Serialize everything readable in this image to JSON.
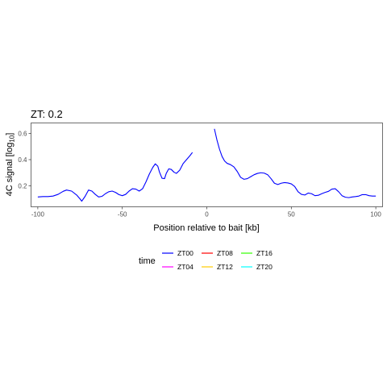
{
  "chart_data": {
    "type": "line",
    "title": "ZT: 0.2",
    "xlabel": "Position relative to bait [kb]",
    "ylabel_main": "4C signal [log",
    "ylabel_sub": "10",
    "ylabel_end": "]",
    "xlim": [
      -104,
      104
    ],
    "ylim": [
      0.04,
      0.68
    ],
    "x_ticks": [
      -100,
      -50,
      0,
      50,
      100
    ],
    "x_tick_labels": [
      "-100",
      "-50",
      "0",
      "50",
      "100"
    ],
    "y_ticks": [
      0.2,
      0.4,
      0.6
    ],
    "y_tick_labels": [
      "0.2",
      "0.4",
      "0.6"
    ],
    "grid": false,
    "legend_title": "time",
    "legend_position": "bottom",
    "legend": [
      {
        "label": "ZT00",
        "color": "#0000ff"
      },
      {
        "label": "ZT04",
        "color": "#ff00ff"
      },
      {
        "label": "ZT08",
        "color": "#ff0000"
      },
      {
        "label": "ZT12",
        "color": "#ffcc00"
      },
      {
        "label": "ZT16",
        "color": "#33ff00"
      },
      {
        "label": "ZT20",
        "color": "#00ffff"
      }
    ],
    "series": [
      {
        "name": "ZT00",
        "color": "#0000ff",
        "segments": [
          [
            [
              -100,
              0.115
            ],
            [
              -97,
              0.118
            ],
            [
              -94,
              0.118
            ],
            [
              -91,
              0.122
            ],
            [
              -88,
              0.135
            ],
            [
              -85,
              0.158
            ],
            [
              -83,
              0.168
            ],
            [
              -80,
              0.16
            ],
            [
              -77,
              0.13
            ],
            [
              -75,
              0.1
            ],
            [
              -74,
              0.083
            ],
            [
              -72,
              0.12
            ],
            [
              -70,
              0.168
            ],
            [
              -68,
              0.16
            ],
            [
              -66,
              0.135
            ],
            [
              -64,
              0.115
            ],
            [
              -62,
              0.12
            ],
            [
              -60,
              0.14
            ],
            [
              -58,
              0.155
            ],
            [
              -56,
              0.16
            ],
            [
              -54,
              0.15
            ],
            [
              -52,
              0.133
            ],
            [
              -50,
              0.125
            ],
            [
              -48,
              0.135
            ],
            [
              -46,
              0.16
            ],
            [
              -44,
              0.178
            ],
            [
              -42,
              0.175
            ],
            [
              -40,
              0.16
            ],
            [
              -38,
              0.178
            ],
            [
              -36,
              0.23
            ],
            [
              -34,
              0.29
            ],
            [
              -32,
              0.34
            ],
            [
              -30.5,
              0.368
            ],
            [
              -29,
              0.35
            ],
            [
              -28,
              0.305
            ],
            [
              -26.5,
              0.258
            ],
            [
              -25,
              0.255
            ],
            [
              -24,
              0.295
            ],
            [
              -22.5,
              0.33
            ],
            [
              -21,
              0.325
            ],
            [
              -19.5,
              0.305
            ],
            [
              -18,
              0.295
            ],
            [
              -16,
              0.32
            ],
            [
              -14,
              0.37
            ],
            [
              -12,
              0.4
            ],
            [
              -10,
              0.43
            ],
            [
              -8.5,
              0.455
            ]
          ],
          [
            [
              4.5,
              0.635
            ],
            [
              6,
              0.55
            ],
            [
              7.5,
              0.48
            ],
            [
              9,
              0.425
            ],
            [
              10.5,
              0.39
            ],
            [
              12,
              0.372
            ],
            [
              14,
              0.362
            ],
            [
              16,
              0.345
            ],
            [
              18,
              0.31
            ],
            [
              20,
              0.265
            ],
            [
              22,
              0.25
            ],
            [
              24,
              0.255
            ],
            [
              26,
              0.27
            ],
            [
              28,
              0.285
            ],
            [
              30,
              0.295
            ],
            [
              32,
              0.3
            ],
            [
              34,
              0.297
            ],
            [
              36,
              0.285
            ],
            [
              38,
              0.255
            ],
            [
              40,
              0.22
            ],
            [
              42,
              0.21
            ],
            [
              44,
              0.22
            ],
            [
              46,
              0.225
            ],
            [
              48,
              0.222
            ],
            [
              50,
              0.215
            ],
            [
              52,
              0.195
            ],
            [
              54,
              0.155
            ],
            [
              56,
              0.135
            ],
            [
              58,
              0.13
            ],
            [
              60,
              0.145
            ],
            [
              62,
              0.14
            ],
            [
              64,
              0.125
            ],
            [
              66,
              0.128
            ],
            [
              68,
              0.14
            ],
            [
              70,
              0.15
            ],
            [
              72,
              0.158
            ],
            [
              74,
              0.175
            ],
            [
              76,
              0.178
            ],
            [
              78,
              0.155
            ],
            [
              80,
              0.125
            ],
            [
              82,
              0.113
            ],
            [
              84,
              0.11
            ],
            [
              86,
              0.115
            ],
            [
              88,
              0.118
            ],
            [
              90,
              0.122
            ],
            [
              92,
              0.133
            ],
            [
              94,
              0.133
            ],
            [
              96,
              0.125
            ],
            [
              98,
              0.122
            ],
            [
              100,
              0.122
            ]
          ]
        ]
      }
    ]
  }
}
